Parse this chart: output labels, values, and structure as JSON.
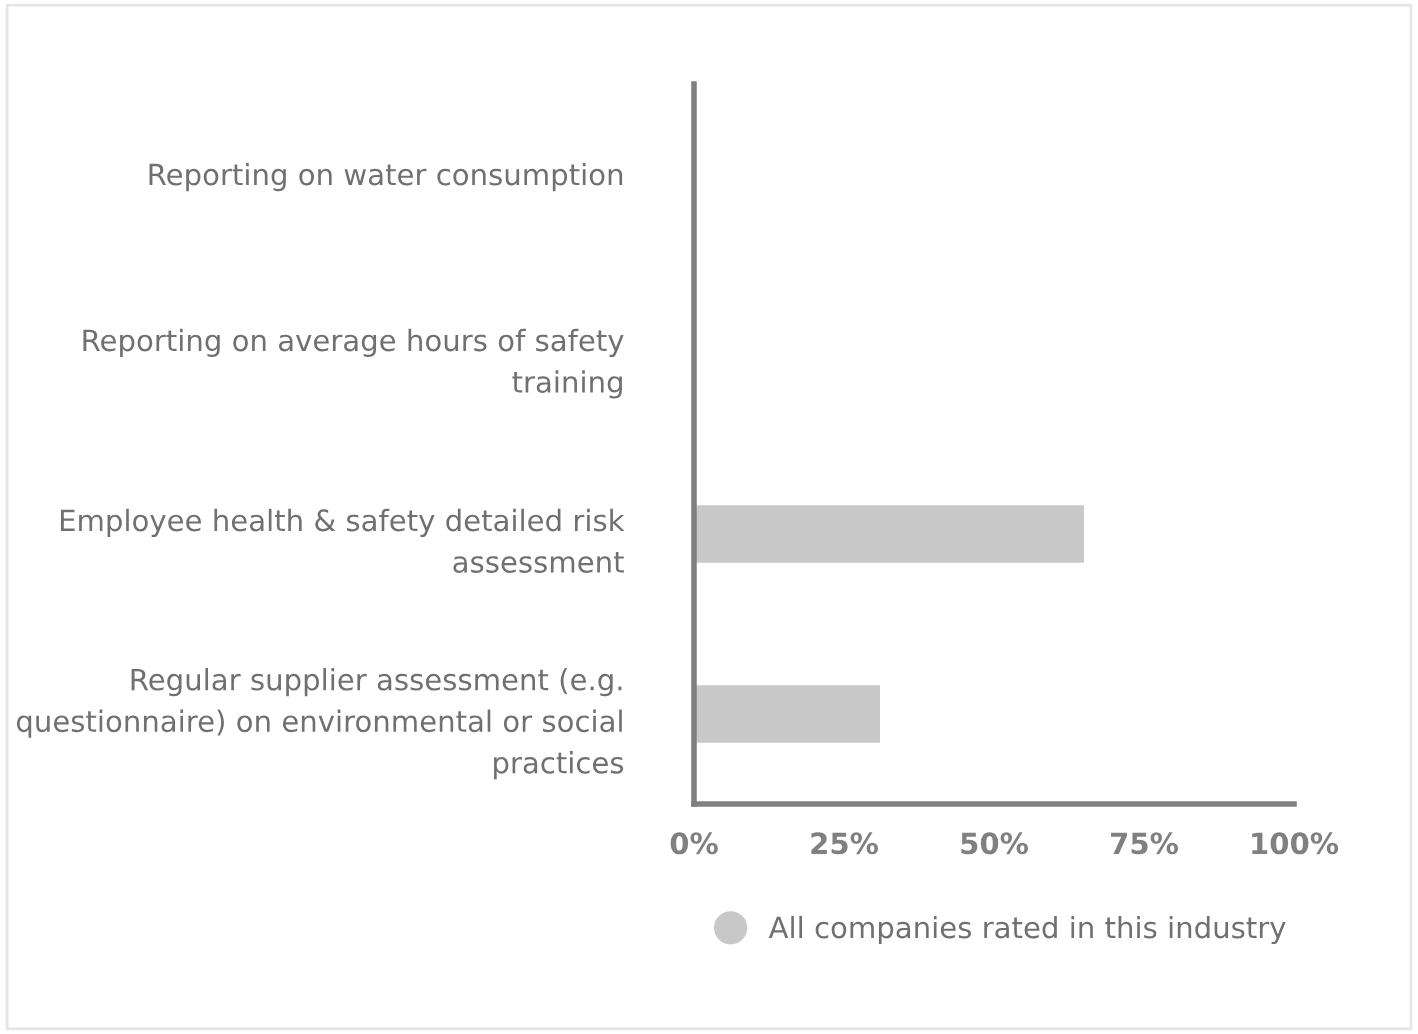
{
  "chart_data": {
    "type": "bar",
    "orientation": "horizontal",
    "categories": [
      "Reporting on water consumption",
      "Reporting on average hours of safety training",
      "Employee health & safety detailed risk assessment",
      "Regular supplier assessment (e.g. questionnaire) on environmental or social practices"
    ],
    "series": [
      {
        "name": "All companies rated in this industry",
        "color": "#c8c8c8",
        "values": [
          0,
          0,
          65,
          31
        ]
      }
    ],
    "xlim": [
      0,
      100
    ],
    "xticks": [
      {
        "value": 0,
        "label": "0%"
      },
      {
        "value": 25,
        "label": "25%"
      },
      {
        "value": 50,
        "label": "50%"
      },
      {
        "value": 75,
        "label": "75%"
      },
      {
        "value": 100,
        "label": "100%"
      }
    ],
    "grid": false,
    "legend": "bottom"
  }
}
